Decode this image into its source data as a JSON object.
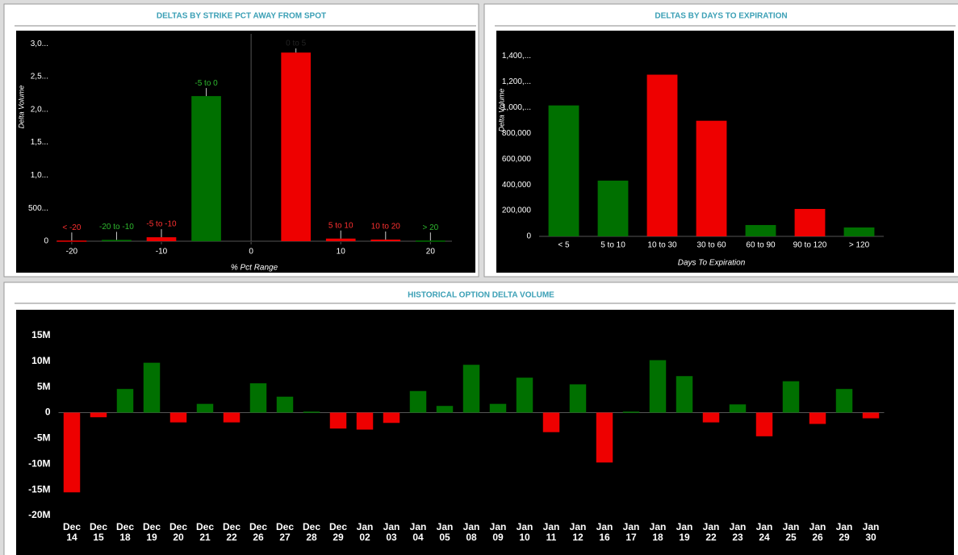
{
  "chart_data": [
    {
      "type": "bar",
      "title": "DELTAS BY STRIKE PCT AWAY FROM SPOT",
      "x": [
        -20,
        -15,
        -10,
        -5,
        5,
        10,
        15,
        20
      ],
      "bar_labels": [
        "< -20",
        "-20 to -10",
        "-5 to -10",
        "-5 to 0",
        "0 to 5",
        "5 to 10",
        "10 to 20",
        "> 20"
      ],
      "values": [
        10,
        20,
        60,
        2204,
        2865,
        40,
        25,
        10
      ],
      "colors": [
        "#ee0000",
        "#007000",
        "#ee0000",
        "#007000",
        "#ee0000",
        "#ee0000",
        "#ee0000",
        "#007000"
      ],
      "xlim": [
        -21.7,
        22.4
      ],
      "xticks": [
        -20,
        -10,
        0,
        10,
        20
      ],
      "ylim": [
        0,
        3100
      ],
      "yticks": [
        0,
        {
          "value": 500,
          "label": "500..."
        },
        {
          "value": 1000,
          "label": "1,0..."
        },
        {
          "value": 1500,
          "label": "1,5..."
        },
        {
          "value": 2000,
          "label": "2,0..."
        },
        {
          "value": 2500,
          "label": "2,5..."
        },
        {
          "value": 3000,
          "label": "3,0..."
        }
      ],
      "xlabel": "% Pct Range",
      "ylabel": "Delta Volume"
    },
    {
      "type": "bar",
      "title": "DELTAS BY DAYS TO EXPIRATION",
      "categories": [
        "< 5",
        "5 to 10",
        "10 to 30",
        "30 to 60",
        "60 to 90",
        "90 to 120",
        "> 120"
      ],
      "values": [
        1017000,
        433000,
        1256000,
        898000,
        88000,
        213000,
        69000
      ],
      "colors": [
        "#007000",
        "#007000",
        "#ee0000",
        "#ee0000",
        "#007000",
        "#ee0000",
        "#007000"
      ],
      "ylim": [
        0,
        1460000
      ],
      "yticks": [
        0,
        {
          "value": 200000,
          "label": "200,000"
        },
        {
          "value": 400000,
          "label": "400,000"
        },
        {
          "value": 600000,
          "label": "600,000"
        },
        {
          "value": 800000,
          "label": "800,000"
        },
        {
          "value": 1000000,
          "label": "1,000,..."
        },
        {
          "value": 1200000,
          "label": "1,200,..."
        },
        {
          "value": 1400000,
          "label": "1,400,..."
        }
      ],
      "xlabel": "Days To Expiration",
      "ylabel": "Delta Volume"
    },
    {
      "type": "bar",
      "title": "HISTORICAL OPTION DELTA VOLUME",
      "categories": [
        "Dec 14",
        "Dec 15",
        "Dec 18",
        "Dec 19",
        "Dec 20",
        "Dec 21",
        "Dec 22",
        "Dec 26",
        "Dec 27",
        "Dec 28",
        "Dec 29",
        "Jan 02",
        "Jan 03",
        "Jan 04",
        "Jan 05",
        "Jan 08",
        "Jan 09",
        "Jan 10",
        "Jan 11",
        "Jan 12",
        "Jan 16",
        "Jan 17",
        "Jan 18",
        "Jan 19",
        "Jan 22",
        "Jan 23",
        "Jan 24",
        "Jan 25",
        "Jan 26",
        "Jan 29",
        "Jan 30"
      ],
      "values": [
        -15.5,
        -0.9,
        4.6,
        9.7,
        -1.9,
        1.7,
        -1.9,
        5.7,
        3.1,
        0.2,
        -3.1,
        -3.3,
        -2.0,
        4.2,
        1.3,
        9.3,
        1.7,
        6.8,
        -3.8,
        5.5,
        -9.7,
        0.2,
        10.2,
        7.1,
        -1.9,
        1.6,
        -4.6,
        6.1,
        -2.2,
        4.6,
        -1.1
      ],
      "colors": [
        "#ee0000",
        "#ee0000",
        "#007000",
        "#007000",
        "#ee0000",
        "#007000",
        "#ee0000",
        "#007000",
        "#007000",
        "#007000",
        "#ee0000",
        "#ee0000",
        "#ee0000",
        "#007000",
        "#007000",
        "#007000",
        "#007000",
        "#007000",
        "#ee0000",
        "#007000",
        "#ee0000",
        "#007000",
        "#007000",
        "#007000",
        "#ee0000",
        "#007000",
        "#ee0000",
        "#007000",
        "#ee0000",
        "#007000",
        "#ee0000"
      ],
      "ylim": [
        -20,
        20
      ],
      "yticks": [
        {
          "value": -20,
          "label": "-20M"
        },
        {
          "value": -15,
          "label": "-15M"
        },
        {
          "value": -10,
          "label": "-10M"
        },
        {
          "value": -5,
          "label": "-5M"
        },
        0,
        {
          "value": 5,
          "label": "5M"
        },
        {
          "value": 10,
          "label": "10M"
        },
        {
          "value": 15,
          "label": "15M"
        }
      ]
    }
  ]
}
